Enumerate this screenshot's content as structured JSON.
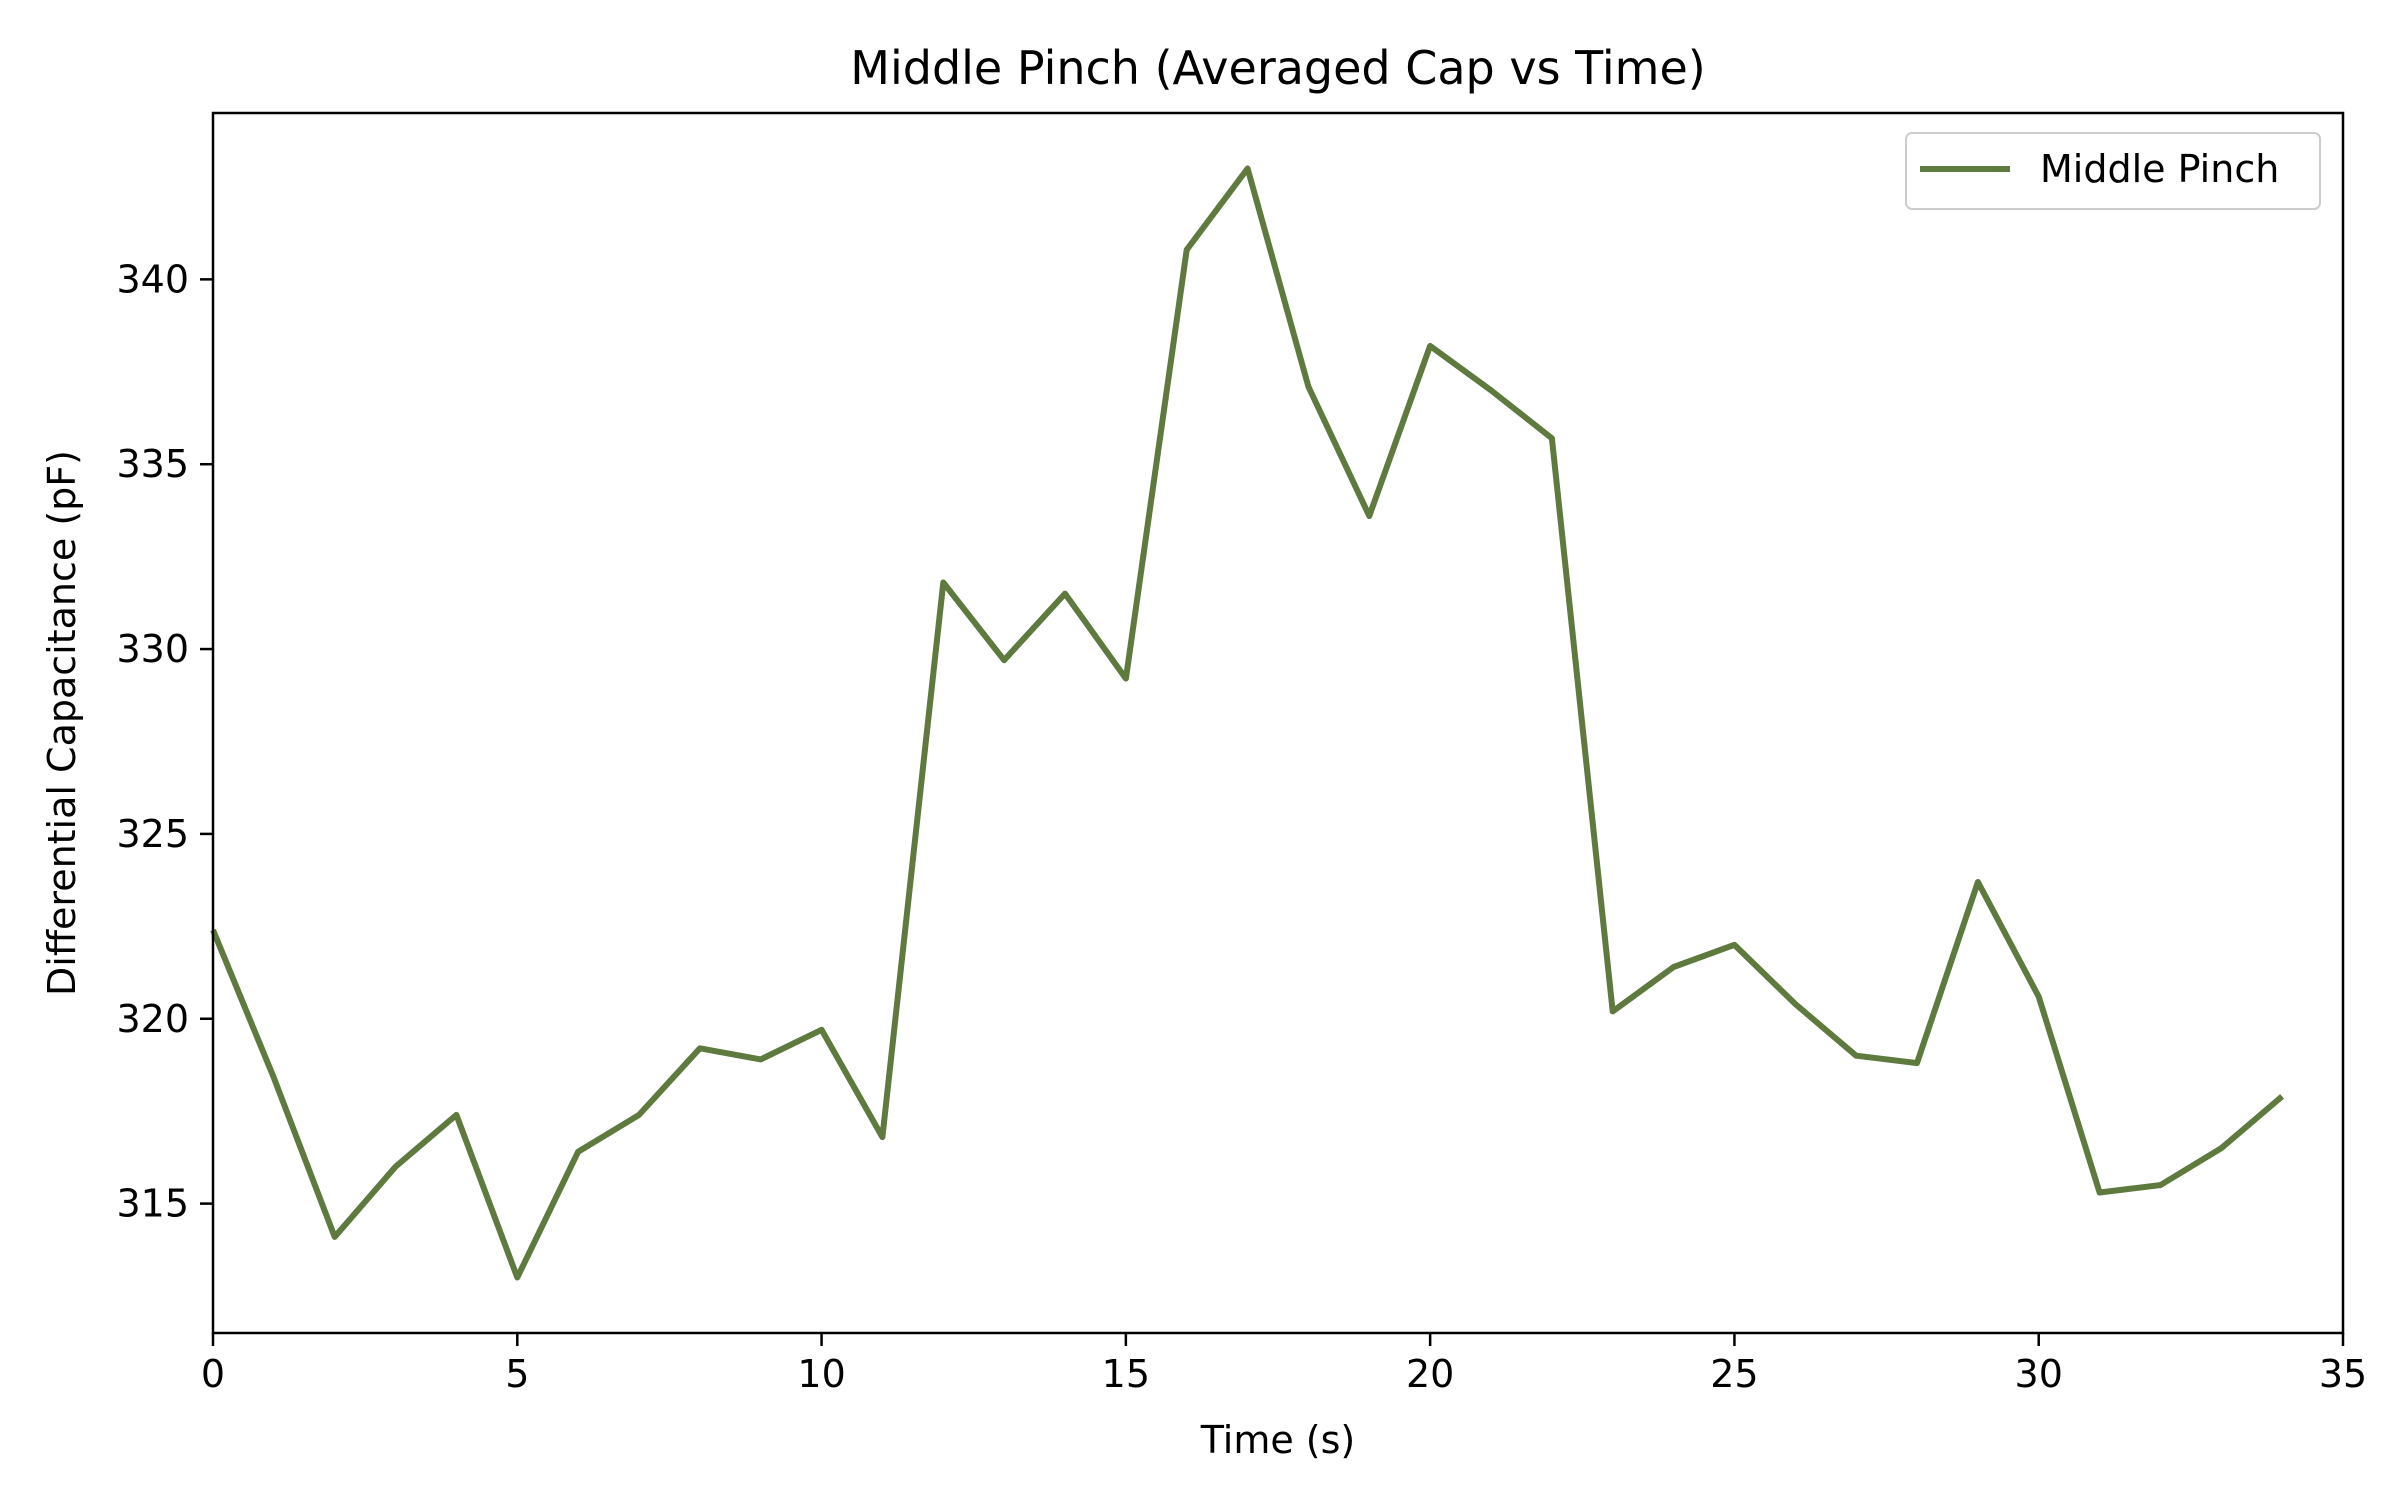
{
  "chart_data": {
    "type": "line",
    "title": "Middle Pinch (Averaged Cap vs Time)",
    "xlabel": "Time (s)",
    "ylabel": "Differential Capacitance (pF)",
    "xlim": [
      0,
      35
    ],
    "ylim": [
      311.5,
      344.5
    ],
    "xticks": [
      0,
      5,
      10,
      15,
      20,
      25,
      30,
      35
    ],
    "yticks": [
      315,
      320,
      325,
      330,
      335,
      340
    ],
    "grid": false,
    "legend_position": "top-right",
    "series": [
      {
        "name": "Middle Pinch",
        "color": "#5e7a3e",
        "x": [
          0,
          1,
          2,
          3,
          4,
          5,
          6,
          7,
          8,
          9,
          10,
          11,
          12,
          13,
          14,
          15,
          16,
          17,
          18,
          19,
          20,
          21,
          22,
          23,
          24,
          25,
          26,
          27,
          28,
          29,
          30,
          31,
          32,
          33,
          34
        ],
        "values": [
          322.4,
          318.4,
          314.1,
          316.0,
          317.4,
          313.0,
          316.4,
          317.4,
          319.2,
          318.9,
          319.7,
          316.8,
          331.8,
          329.7,
          331.5,
          329.2,
          340.8,
          343.0,
          337.1,
          333.6,
          338.2,
          337.0,
          335.7,
          320.2,
          321.4,
          322.0,
          320.4,
          319.0,
          318.8,
          323.7,
          320.6,
          315.3,
          315.5,
          316.5,
          317.9
        ]
      }
    ]
  }
}
